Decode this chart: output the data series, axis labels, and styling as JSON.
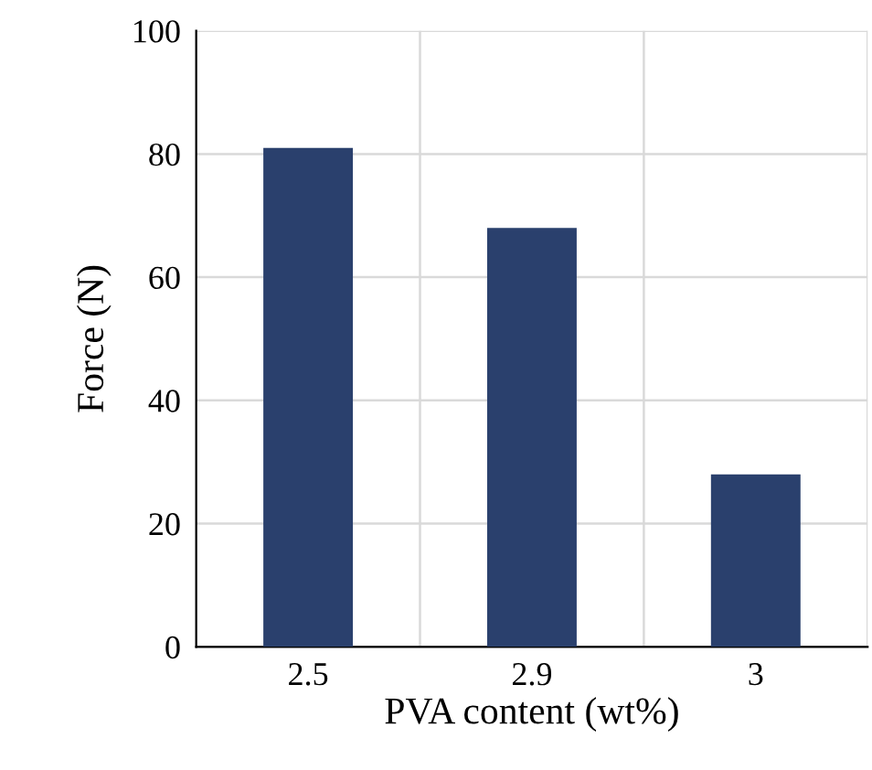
{
  "chart_data": {
    "type": "bar",
    "xlabel": "PVA content (wt%)",
    "ylabel": "Force (N)",
    "categories": [
      "2.5",
      "2.9",
      "3"
    ],
    "values": [
      81,
      68,
      28
    ],
    "color": "#2a406d",
    "ylim": [
      0,
      100
    ],
    "yticks": [
      0,
      20,
      40,
      60,
      80,
      100
    ],
    "grid": true
  }
}
